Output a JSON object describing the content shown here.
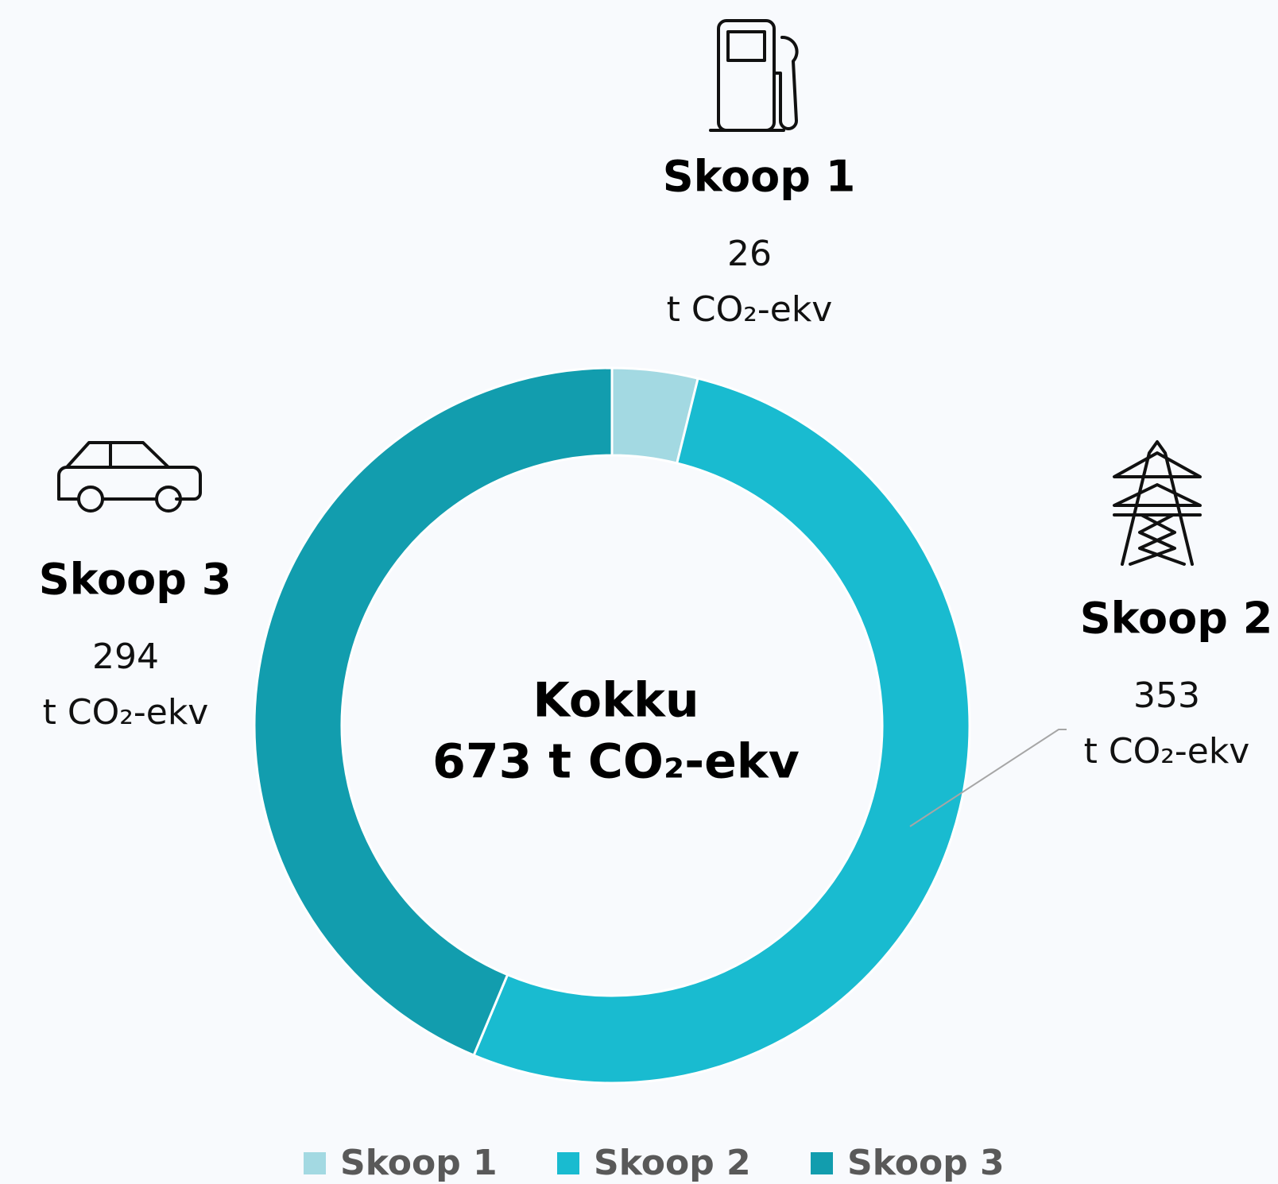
{
  "chart_data": {
    "type": "donut",
    "categories": [
      "Skoop 1",
      "Skoop 2",
      "Skoop 3"
    ],
    "values": [
      26,
      353,
      294
    ],
    "colors": [
      "#a3d9e2",
      "#19bbd0",
      "#129dae"
    ],
    "unit": "t CO₂-ekv",
    "center_title": "Kokku",
    "center_value": "673 t CO₂-ekv",
    "legend": "bottom"
  }
}
